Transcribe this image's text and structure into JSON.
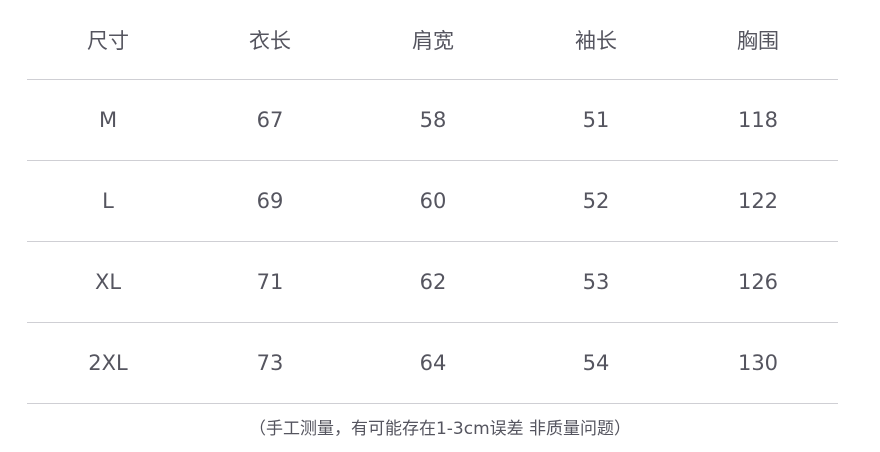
{
  "table": {
    "headers": [
      "尺寸",
      "衣长",
      "肩宽",
      "袖长",
      "胸围"
    ],
    "rows": [
      [
        "M",
        "67",
        "58",
        "51",
        "118"
      ],
      [
        "L",
        "69",
        "60",
        "52",
        "122"
      ],
      [
        "XL",
        "71",
        "62",
        "53",
        "126"
      ],
      [
        "2XL",
        "73",
        "64",
        "54",
        "130"
      ]
    ]
  },
  "note": "（手工测量，有可能存在1-3cm误差 非质量问题）",
  "colors": {
    "text": "#55555f",
    "divider": "#cfcfd4"
  }
}
